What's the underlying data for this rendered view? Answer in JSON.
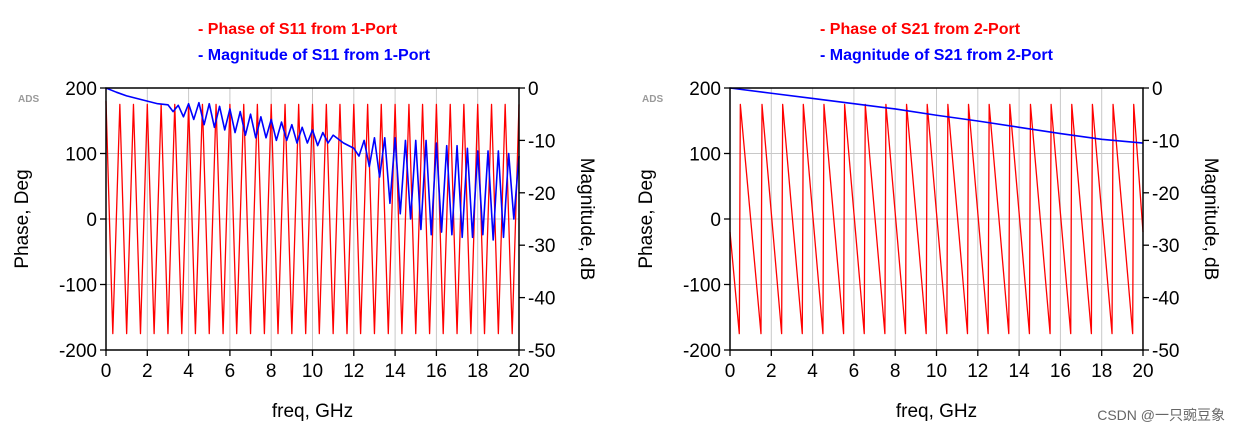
{
  "watermark": "CSDN @一只豌豆象",
  "colors": {
    "phase": "#ff0000",
    "magnitude": "#0000ff",
    "frame": "#000000",
    "grid": "#c8c8c8",
    "ads": "#9a9a9a"
  },
  "chart_data": [
    {
      "type": "line",
      "ads_label": "ADS",
      "legend": [
        {
          "text": "- Phase of S11 from 1-Port",
          "color": "#ff0000"
        },
        {
          "text": "- Magnitude of S11 from 1-Port",
          "color": "#0000ff"
        }
      ],
      "xlabel": "freq, GHz",
      "ylabel_left": "Phase, Deg",
      "ylabel_right": "Magnitude, dB",
      "xlim": [
        0,
        20
      ],
      "ylim_left": [
        -200,
        200
      ],
      "ylim_right": [
        -50,
        0
      ],
      "x_ticks": [
        "0",
        "2",
        "4",
        "6",
        "8",
        "10",
        "12",
        "14",
        "16",
        "18",
        "20"
      ],
      "y_left_ticks": [
        "200",
        "100",
        "0",
        "-100",
        "-200"
      ],
      "y_right_ticks": [
        "0",
        "-10",
        "-20",
        "-30",
        "-40",
        "-50"
      ],
      "grid": true,
      "series": [
        {
          "axis": "left",
          "color": "#ff0000",
          "kind": "phase_wrap",
          "x": [
            0.0,
            0.33,
            0.67,
            1.0,
            1.33,
            1.67,
            2.0,
            2.33,
            2.67,
            3.0,
            3.33,
            3.67,
            4.0,
            4.33,
            4.67,
            5.0,
            5.33,
            5.67,
            6.0,
            6.33,
            6.67,
            7.0,
            7.33,
            7.67,
            8.0,
            8.33,
            8.67,
            9.0,
            9.33,
            9.67,
            10.0,
            10.33,
            10.67,
            11.0,
            11.33,
            11.67,
            12.0,
            12.33,
            12.67,
            13.0,
            13.33,
            13.67,
            14.0,
            14.33,
            14.67,
            15.0,
            15.33,
            15.67,
            16.0,
            16.33,
            16.67,
            17.0,
            17.33,
            17.67,
            18.0,
            18.33,
            18.67,
            19.0,
            19.33,
            19.67,
            20.0
          ],
          "y": [
            180,
            -175,
            175,
            -175,
            175,
            -175,
            175,
            -175,
            175,
            -175,
            175,
            -175,
            175,
            -175,
            175,
            -175,
            175,
            -175,
            175,
            -175,
            175,
            -175,
            175,
            -175,
            175,
            -175,
            175,
            -175,
            175,
            -175,
            175,
            -175,
            175,
            -175,
            175,
            -175,
            175,
            -175,
            175,
            -175,
            175,
            -175,
            175,
            -175,
            175,
            -175,
            175,
            -175,
            175,
            -175,
            175,
            -175,
            175,
            -175,
            175,
            -175,
            175,
            -175,
            175,
            -175,
            175
          ]
        },
        {
          "axis": "right",
          "color": "#0000ff",
          "kind": "magnitude",
          "x": [
            0,
            0.5,
            1.0,
            1.5,
            2.0,
            2.5,
            3.0,
            3.25,
            3.5,
            3.75,
            4.0,
            4.25,
            4.5,
            4.75,
            5.0,
            5.25,
            5.5,
            5.75,
            6.0,
            6.25,
            6.5,
            6.75,
            7.0,
            7.25,
            7.5,
            7.75,
            8.0,
            8.25,
            8.5,
            8.75,
            9.0,
            9.25,
            9.5,
            9.75,
            10.0,
            10.25,
            10.5,
            10.75,
            11.0,
            11.5,
            12.0,
            12.25,
            12.5,
            12.75,
            13.0,
            13.25,
            13.5,
            13.75,
            14.0,
            14.25,
            14.5,
            14.75,
            15.0,
            15.25,
            15.5,
            15.75,
            16.0,
            16.25,
            16.5,
            16.75,
            17.0,
            17.25,
            17.5,
            17.75,
            18.0,
            18.25,
            18.5,
            18.75,
            19.0,
            19.25,
            19.5,
            19.75,
            20.0
          ],
          "y": [
            0,
            -0.8,
            -1.5,
            -2.0,
            -2.5,
            -3.0,
            -3.2,
            -4.5,
            -3.3,
            -5.5,
            -3.0,
            -6.0,
            -2.8,
            -7.0,
            -3.0,
            -7.5,
            -3.5,
            -8.0,
            -4.0,
            -8.5,
            -4.5,
            -9.0,
            -5.0,
            -9.5,
            -5.5,
            -9.5,
            -6.0,
            -10.0,
            -6.5,
            -10.0,
            -7.0,
            -10.5,
            -7.5,
            -10.5,
            -8.0,
            -11.0,
            -8.5,
            -10.5,
            -9.0,
            -10.5,
            -11.5,
            -13.0,
            -10.0,
            -15.0,
            -9.5,
            -17.0,
            -9.5,
            -22.0,
            -9.5,
            -24.0,
            -10.0,
            -25.0,
            -10.0,
            -27.0,
            -10.0,
            -28.0,
            -10.5,
            -27.5,
            -11.0,
            -28.0,
            -11.0,
            -28.5,
            -11.5,
            -28.5,
            -12.0,
            -28.0,
            -12.0,
            -29.0,
            -12.0,
            -28.5,
            -12.5,
            -25.0,
            -13.0
          ]
        }
      ]
    },
    {
      "type": "line",
      "ads_label": "ADS",
      "legend": [
        {
          "text": "- Phase of S21 from 2-Port",
          "color": "#ff0000"
        },
        {
          "text": "- Magnitude of S21 from 2-Port",
          "color": "#0000ff"
        }
      ],
      "xlabel": "freq, GHz",
      "ylabel_left": "Phase, Deg",
      "ylabel_right": "Magnitude, dB",
      "xlim": [
        0,
        20
      ],
      "ylim_left": [
        -200,
        200
      ],
      "ylim_right": [
        -50,
        0
      ],
      "x_ticks": [
        "0",
        "2",
        "4",
        "6",
        "8",
        "10",
        "12",
        "14",
        "16",
        "18",
        "20"
      ],
      "y_left_ticks": [
        "200",
        "100",
        "0",
        "-100",
        "-200"
      ],
      "y_right_ticks": [
        "0",
        "-10",
        "-20",
        "-30",
        "-40",
        "-50"
      ],
      "grid": true,
      "series": [
        {
          "axis": "left",
          "color": "#ff0000",
          "kind": "sawtooth",
          "x": [
            0.0,
            0.45,
            0.5,
            1.5,
            1.55,
            2.5,
            2.55,
            3.5,
            3.55,
            4.5,
            4.55,
            5.5,
            5.55,
            6.5,
            6.55,
            7.5,
            7.55,
            8.5,
            8.55,
            9.5,
            9.55,
            10.5,
            10.55,
            11.5,
            11.55,
            12.5,
            12.55,
            13.5,
            13.55,
            14.5,
            14.55,
            15.5,
            15.55,
            16.5,
            16.55,
            17.5,
            17.55,
            18.5,
            18.55,
            19.5,
            19.55,
            20.0
          ],
          "y": [
            -20,
            -175,
            175,
            -175,
            175,
            -175,
            175,
            -175,
            175,
            -175,
            175,
            -175,
            175,
            -175,
            175,
            -175,
            175,
            -175,
            175,
            -175,
            175,
            -175,
            175,
            -175,
            175,
            -175,
            175,
            -175,
            175,
            -175,
            175,
            -175,
            175,
            -175,
            175,
            -175,
            175,
            -175,
            175,
            -175,
            175,
            -20
          ]
        },
        {
          "axis": "right",
          "color": "#0000ff",
          "kind": "magnitude",
          "x": [
            0,
            2,
            4,
            6,
            8,
            10,
            12,
            14,
            16,
            18,
            20
          ],
          "y": [
            0,
            -1.0,
            -2.0,
            -3.0,
            -4.0,
            -5.2,
            -6.3,
            -7.5,
            -8.7,
            -9.8,
            -10.5
          ]
        }
      ]
    }
  ]
}
